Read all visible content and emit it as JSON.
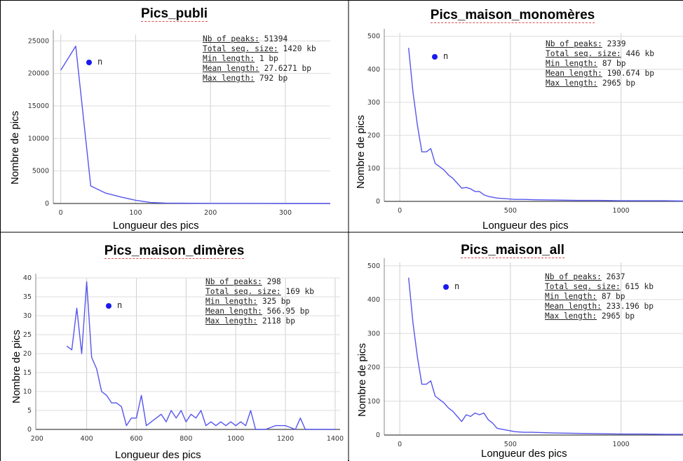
{
  "chart_data": [
    {
      "type": "line",
      "title": "Pics_publi",
      "xlabel": "Longueur des pics",
      "ylabel": "Nombre de pics",
      "xlim": [
        -10,
        360
      ],
      "ylim": [
        0,
        26000
      ],
      "xticks": [
        0,
        100,
        200,
        300
      ],
      "yticks": [
        0,
        5000,
        10000,
        15000,
        20000,
        25000
      ],
      "grid": true,
      "legend": {
        "label": "n",
        "position": "top-left"
      },
      "stats": [
        {
          "key": "Nb of peaks:",
          "value": "51394"
        },
        {
          "key": "Total seq. size:",
          "value": "1420 kb"
        },
        {
          "key": "Min length:",
          "value": "1 bp"
        },
        {
          "key": "Mean length:",
          "value": "27.6271 bp"
        },
        {
          "key": "Max length:",
          "value": "792 bp"
        }
      ],
      "series": [
        {
          "color": "#5555ee",
          "x": [
            0,
            20,
            40,
            60,
            80,
            100,
            120,
            140,
            160,
            200,
            300,
            360
          ],
          "y": [
            20500,
            24200,
            2700,
            1600,
            1000,
            500,
            150,
            70,
            40,
            20,
            5,
            2
          ]
        }
      ]
    },
    {
      "type": "line",
      "title": "Pics_maison_monomères",
      "xlabel": "Longueur des pics",
      "ylabel": "Nombre de pics",
      "xlim": [
        -70,
        1280
      ],
      "ylim": [
        0,
        510
      ],
      "xticks": [
        0,
        500,
        1000
      ],
      "yticks": [
        0,
        100,
        200,
        300,
        400,
        500
      ],
      "grid": true,
      "legend": {
        "label": "n",
        "position": "top-left"
      },
      "stats": [
        {
          "key": "Nb of peaks:",
          "value": "2339"
        },
        {
          "key": "Total seq. size:",
          "value": "446 kb"
        },
        {
          "key": "Min length:",
          "value": "87 bp"
        },
        {
          "key": "Mean length:",
          "value": "190.674 bp"
        },
        {
          "key": "Max length:",
          "value": "2965 bp"
        }
      ],
      "series": [
        {
          "color": "#5555ee",
          "x": [
            40,
            60,
            80,
            100,
            120,
            140,
            160,
            180,
            200,
            220,
            240,
            260,
            280,
            300,
            320,
            340,
            360,
            380,
            400,
            440,
            480,
            520,
            560,
            600,
            700,
            800,
            900,
            1000,
            1100,
            1200,
            1280
          ],
          "y": [
            465,
            330,
            230,
            150,
            150,
            160,
            115,
            105,
            95,
            80,
            70,
            55,
            40,
            42,
            38,
            30,
            30,
            20,
            15,
            10,
            8,
            6,
            6,
            5,
            4,
            3,
            3,
            2,
            2,
            2,
            1
          ]
        }
      ]
    },
    {
      "type": "line",
      "title": "Pics_maison_dimères",
      "xlabel": "Longueur des pics",
      "ylabel": "Nombre de pics",
      "xlim": [
        195,
        1420
      ],
      "ylim": [
        0,
        40
      ],
      "xticks": [
        200,
        400,
        600,
        800,
        1000,
        1200,
        1400
      ],
      "yticks": [
        0,
        5,
        10,
        15,
        20,
        25,
        30,
        35,
        40
      ],
      "grid": true,
      "legend": {
        "label": "n",
        "position": "top-left"
      },
      "stats": [
        {
          "key": "Nb of peaks:",
          "value": "298"
        },
        {
          "key": "Total seq. size:",
          "value": "169 kb"
        },
        {
          "key": "Min length:",
          "value": "325 bp"
        },
        {
          "key": "Mean length:",
          "value": "566.95 bp"
        },
        {
          "key": "Max length:",
          "value": "2118 bp"
        }
      ],
      "series": [
        {
          "color": "#5555ee",
          "x": [
            320,
            340,
            360,
            380,
            400,
            420,
            440,
            460,
            480,
            500,
            520,
            540,
            560,
            580,
            600,
            620,
            640,
            660,
            680,
            700,
            720,
            740,
            760,
            780,
            800,
            820,
            840,
            860,
            880,
            900,
            920,
            940,
            960,
            980,
            1000,
            1020,
            1040,
            1060,
            1080,
            1100,
            1120,
            1160,
            1200,
            1240,
            1260,
            1280,
            1300,
            1400
          ],
          "y": [
            22,
            21,
            32,
            20,
            39,
            19,
            16,
            10,
            9,
            7,
            7,
            6,
            1,
            3,
            3,
            9,
            1,
            2,
            3,
            4,
            2,
            5,
            3,
            5,
            2,
            4,
            3,
            5,
            1,
            2,
            1,
            2,
            1,
            2,
            1,
            2,
            1,
            5,
            0,
            0,
            0,
            1,
            1,
            0,
            3,
            0,
            0,
            0
          ]
        }
      ]
    },
    {
      "type": "line",
      "title": "Pics_maison_all",
      "xlabel": "Longueur des pics",
      "ylabel": "Nombre de pics",
      "xlim": [
        -70,
        1280
      ],
      "ylim": [
        0,
        510
      ],
      "xticks": [
        0,
        500,
        1000
      ],
      "yticks": [
        0,
        100,
        200,
        300,
        400,
        500
      ],
      "grid": true,
      "legend": {
        "label": "n",
        "position": "top-left"
      },
      "stats": [
        {
          "key": "Nb of peaks:",
          "value": "2637"
        },
        {
          "key": "Total seq. size:",
          "value": "615 kb"
        },
        {
          "key": "Min length:",
          "value": "87 bp"
        },
        {
          "key": "Mean length:",
          "value": "233.196 bp"
        },
        {
          "key": "Max length:",
          "value": "2965 bp"
        }
      ],
      "series": [
        {
          "color": "#5555ee",
          "x": [
            40,
            60,
            80,
            100,
            120,
            140,
            160,
            180,
            200,
            220,
            240,
            260,
            280,
            300,
            320,
            340,
            360,
            380,
            400,
            420,
            440,
            480,
            520,
            560,
            600,
            700,
            800,
            900,
            1000,
            1100,
            1200,
            1280
          ],
          "y": [
            465,
            330,
            230,
            150,
            150,
            160,
            115,
            105,
            95,
            80,
            70,
            55,
            40,
            60,
            55,
            65,
            60,
            65,
            45,
            35,
            20,
            15,
            10,
            8,
            8,
            6,
            5,
            4,
            3,
            3,
            2,
            2
          ]
        }
      ]
    }
  ]
}
